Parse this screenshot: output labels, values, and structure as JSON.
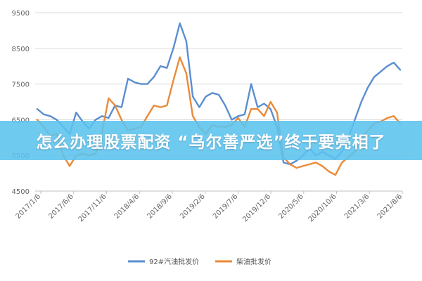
{
  "overlay": {
    "title": "怎么办理股票配资 “乌尔善严选”终于要亮相了",
    "banner_color": "#5cc3ef"
  },
  "chart_data": {
    "type": "line",
    "title": "",
    "xlabel": "",
    "ylabel": "",
    "ylim": [
      4500,
      9500
    ],
    "yticks": [
      4500,
      5500,
      6500,
      7500,
      8500,
      9500
    ],
    "grid": "horizontal",
    "legend_position": "bottom",
    "xtick_labels": [
      "2017/1/6",
      "2017/6/6",
      "2017/11/6",
      "2018/4/6",
      "2018/9/6",
      "2019/2/6",
      "2019/7/6",
      "2019/12/6",
      "2020/5/6",
      "2020/10/6",
      "2021/3/6",
      "2021/8/6"
    ],
    "x_months": [
      "2017/1",
      "2017/2",
      "2017/3",
      "2017/4",
      "2017/5",
      "2017/6",
      "2017/7",
      "2017/8",
      "2017/9",
      "2017/10",
      "2017/11",
      "2017/12",
      "2018/1",
      "2018/2",
      "2018/3",
      "2018/4",
      "2018/5",
      "2018/6",
      "2018/7",
      "2018/8",
      "2018/9",
      "2018/10",
      "2018/11",
      "2018/12",
      "2019/1",
      "2019/2",
      "2019/3",
      "2019/4",
      "2019/5",
      "2019/6",
      "2019/7",
      "2019/8",
      "2019/9",
      "2019/10",
      "2019/11",
      "2019/12",
      "2020/1",
      "2020/2",
      "2020/3",
      "2020/4",
      "2020/5",
      "2020/6",
      "2020/7",
      "2020/8",
      "2020/9",
      "2020/10",
      "2020/11",
      "2020/12",
      "2021/1",
      "2021/2",
      "2021/3",
      "2021/4",
      "2021/5",
      "2021/6",
      "2021/7",
      "2021/8",
      "2021/9"
    ],
    "series": [
      {
        "name": "92#汽油批发价",
        "color": "#5b8ed0",
        "values": [
          6800,
          6650,
          6600,
          6500,
          6300,
          6100,
          6700,
          6450,
          6250,
          6500,
          6600,
          6550,
          6900,
          6850,
          7650,
          7550,
          7500,
          7500,
          7700,
          8000,
          7950,
          8500,
          9200,
          8700,
          7150,
          6850,
          7150,
          7250,
          7200,
          6900,
          6500,
          6600,
          6650,
          7500,
          6850,
          6950,
          6800,
          6300,
          5300,
          5250,
          5350,
          5500,
          5700,
          5500,
          5600,
          5500,
          5400,
          5600,
          6000,
          6500,
          7000,
          7400,
          7700,
          7850,
          8000,
          8100,
          7900
        ]
      },
      {
        "name": "柴油批发价",
        "color": "#ea8a38",
        "values": [
          6500,
          6300,
          6050,
          6100,
          5500,
          5200,
          5500,
          5550,
          5500,
          5550,
          6150,
          7100,
          6900,
          6500,
          6200,
          6250,
          6300,
          6600,
          6900,
          6850,
          6900,
          7600,
          8250,
          7800,
          6600,
          6300,
          6100,
          6350,
          6300,
          6300,
          6350,
          6550,
          6300,
          6800,
          6800,
          6600,
          7000,
          6700,
          5450,
          5250,
          5150,
          5200,
          5250,
          5300,
          5200,
          5050,
          4950,
          5300,
          5450,
          5600,
          5950,
          6200,
          6400,
          6450,
          6550,
          6600,
          6400
        ]
      }
    ]
  }
}
